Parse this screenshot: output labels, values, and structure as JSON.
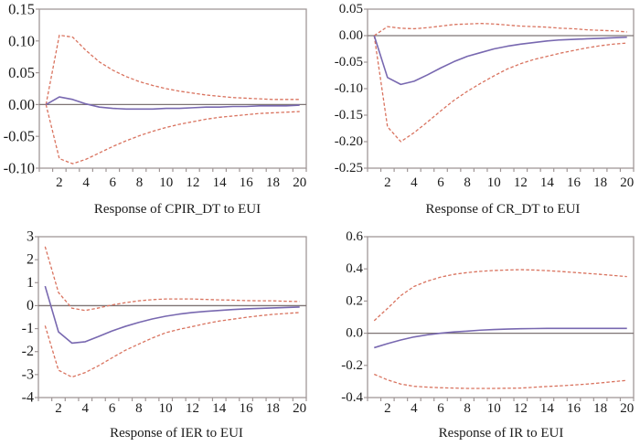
{
  "colors": {
    "response": "#7868b0",
    "band": "#d9735f",
    "axis": "#a09797",
    "zero": "#7d7373",
    "background": "#ffffff"
  },
  "chart_data": [
    {
      "type": "line",
      "title": "Response of CPIR_DT to EUI",
      "xlabel": "",
      "ylabel": "",
      "grid": false,
      "xlim": [
        0.5,
        20.5
      ],
      "ylim": [
        -0.1,
        0.15
      ],
      "xticks": [
        2,
        4,
        6,
        8,
        10,
        12,
        14,
        16,
        18,
        20
      ],
      "xtick_labels": [
        "2",
        "4",
        "6",
        "8",
        "10",
        "12",
        "14",
        "16",
        "18",
        "20"
      ],
      "yticks": [
        -0.1,
        -0.05,
        0.0,
        0.05,
        0.1,
        0.15
      ],
      "ytick_labels": [
        "-0.10",
        "-0.05",
        "0.00",
        "0.05",
        "0.10",
        "0.15"
      ],
      "x": [
        1,
        2,
        3,
        4,
        5,
        6,
        7,
        8,
        9,
        10,
        11,
        12,
        13,
        14,
        15,
        16,
        17,
        18,
        19,
        20
      ],
      "series": {
        "response": [
          0.0,
          0.012,
          0.008,
          0.001,
          -0.004,
          -0.006,
          -0.007,
          -0.007,
          -0.007,
          -0.006,
          -0.006,
          -0.005,
          -0.004,
          -0.004,
          -0.003,
          -0.003,
          -0.002,
          -0.002,
          -0.002,
          -0.001
        ],
        "upper": [
          0.0,
          0.109,
          0.106,
          0.085,
          0.067,
          0.054,
          0.044,
          0.036,
          0.03,
          0.025,
          0.021,
          0.018,
          0.015,
          0.013,
          0.011,
          0.01,
          0.009,
          0.008,
          0.008,
          0.008
        ],
        "lower": [
          0.0,
          -0.085,
          -0.093,
          -0.086,
          -0.076,
          -0.066,
          -0.057,
          -0.049,
          -0.042,
          -0.036,
          -0.031,
          -0.027,
          -0.023,
          -0.02,
          -0.018,
          -0.016,
          -0.014,
          -0.013,
          -0.012,
          -0.011
        ]
      }
    },
    {
      "type": "line",
      "title": "Response of CR_DT to EUI",
      "xlabel": "",
      "ylabel": "",
      "grid": false,
      "xlim": [
        0.5,
        20.5
      ],
      "ylim": [
        -0.25,
        0.05
      ],
      "xticks": [
        2,
        4,
        6,
        8,
        10,
        12,
        14,
        16,
        18,
        20
      ],
      "xtick_labels": [
        "2",
        "4",
        "6",
        "8",
        "10",
        "12",
        "14",
        "16",
        "18",
        "20"
      ],
      "yticks": [
        -0.25,
        -0.2,
        -0.15,
        -0.1,
        -0.05,
        0.0,
        0.05
      ],
      "ytick_labels": [
        "-0.25",
        "-0.20",
        "-0.15",
        "-0.10",
        "-0.05",
        "0.00",
        "0.05"
      ],
      "x": [
        1,
        2,
        3,
        4,
        5,
        6,
        7,
        8,
        9,
        10,
        11,
        12,
        13,
        14,
        15,
        16,
        17,
        18,
        19,
        20
      ],
      "series": {
        "response": [
          0.0,
          -0.079,
          -0.092,
          -0.086,
          -0.074,
          -0.061,
          -0.049,
          -0.039,
          -0.032,
          -0.025,
          -0.02,
          -0.016,
          -0.013,
          -0.01,
          -0.008,
          -0.007,
          -0.006,
          -0.005,
          -0.004,
          -0.003
        ],
        "upper": [
          0.0,
          0.017,
          0.014,
          0.013,
          0.015,
          0.018,
          0.021,
          0.022,
          0.023,
          0.022,
          0.02,
          0.018,
          0.017,
          0.016,
          0.014,
          0.013,
          0.011,
          0.01,
          0.009,
          0.007
        ],
        "lower": [
          0.0,
          -0.172,
          -0.2,
          -0.183,
          -0.163,
          -0.142,
          -0.122,
          -0.105,
          -0.09,
          -0.076,
          -0.063,
          -0.053,
          -0.045,
          -0.039,
          -0.033,
          -0.028,
          -0.023,
          -0.019,
          -0.016,
          -0.014
        ]
      }
    },
    {
      "type": "line",
      "title": "Response of IER to EUI",
      "xlabel": "",
      "ylabel": "",
      "grid": false,
      "xlim": [
        0.5,
        20.5
      ],
      "ylim": [
        -4,
        3
      ],
      "xticks": [
        2,
        4,
        6,
        8,
        10,
        12,
        14,
        16,
        18,
        20
      ],
      "xtick_labels": [
        "2",
        "4",
        "6",
        "8",
        "10",
        "12",
        "14",
        "16",
        "18",
        "20"
      ],
      "yticks": [
        -4,
        -3,
        -2,
        -1,
        0,
        1,
        2,
        3
      ],
      "ytick_labels": [
        "-4",
        "-3",
        "-2",
        "-1",
        "0",
        "1",
        "2",
        "3"
      ],
      "x": [
        1,
        2,
        3,
        4,
        5,
        6,
        7,
        8,
        9,
        10,
        11,
        12,
        13,
        14,
        15,
        16,
        17,
        18,
        19,
        20
      ],
      "series": {
        "response": [
          0.85,
          -1.14,
          -1.63,
          -1.57,
          -1.34,
          -1.1,
          -0.9,
          -0.73,
          -0.58,
          -0.46,
          -0.37,
          -0.3,
          -0.25,
          -0.21,
          -0.17,
          -0.14,
          -0.12,
          -0.1,
          -0.08,
          -0.06
        ],
        "upper": [
          2.57,
          0.57,
          -0.11,
          -0.21,
          -0.1,
          0.03,
          0.13,
          0.21,
          0.26,
          0.29,
          0.29,
          0.29,
          0.27,
          0.25,
          0.24,
          0.22,
          0.21,
          0.21,
          0.19,
          0.18
        ],
        "lower": [
          -0.87,
          -2.81,
          -3.11,
          -2.91,
          -2.61,
          -2.27,
          -1.94,
          -1.67,
          -1.41,
          -1.18,
          -1.03,
          -0.91,
          -0.78,
          -0.67,
          -0.59,
          -0.51,
          -0.44,
          -0.38,
          -0.34,
          -0.3
        ]
      }
    },
    {
      "type": "line",
      "title": "Response of IR to EUI",
      "xlabel": "",
      "ylabel": "",
      "grid": false,
      "xlim": [
        0.5,
        20.5
      ],
      "ylim": [
        -0.4,
        0.6
      ],
      "xticks": [
        2,
        4,
        6,
        8,
        10,
        12,
        14,
        16,
        18,
        20
      ],
      "xtick_labels": [
        "2",
        "4",
        "6",
        "8",
        "10",
        "12",
        "14",
        "16",
        "18",
        "20"
      ],
      "yticks": [
        -0.4,
        -0.2,
        0.0,
        0.2,
        0.4,
        0.6
      ],
      "ytick_labels": [
        "-0.4",
        "-0.2",
        "0.0",
        "0.2",
        "0.4",
        "0.6"
      ],
      "x": [
        1,
        2,
        3,
        4,
        5,
        6,
        7,
        8,
        9,
        10,
        11,
        12,
        13,
        14,
        15,
        16,
        17,
        18,
        19,
        20
      ],
      "series": {
        "response": [
          -0.09,
          -0.065,
          -0.042,
          -0.023,
          -0.01,
          0.0,
          0.008,
          0.013,
          0.019,
          0.023,
          0.026,
          0.028,
          0.029,
          0.03,
          0.03,
          0.03,
          0.03,
          0.03,
          0.03,
          0.03
        ],
        "upper": [
          0.078,
          0.154,
          0.234,
          0.291,
          0.324,
          0.349,
          0.366,
          0.377,
          0.385,
          0.39,
          0.393,
          0.395,
          0.393,
          0.389,
          0.384,
          0.378,
          0.372,
          0.366,
          0.359,
          0.352
        ],
        "lower": [
          -0.255,
          -0.29,
          -0.316,
          -0.33,
          -0.335,
          -0.339,
          -0.341,
          -0.343,
          -0.343,
          -0.343,
          -0.342,
          -0.341,
          -0.336,
          -0.331,
          -0.327,
          -0.322,
          -0.316,
          -0.309,
          -0.301,
          -0.293
        ]
      }
    }
  ]
}
